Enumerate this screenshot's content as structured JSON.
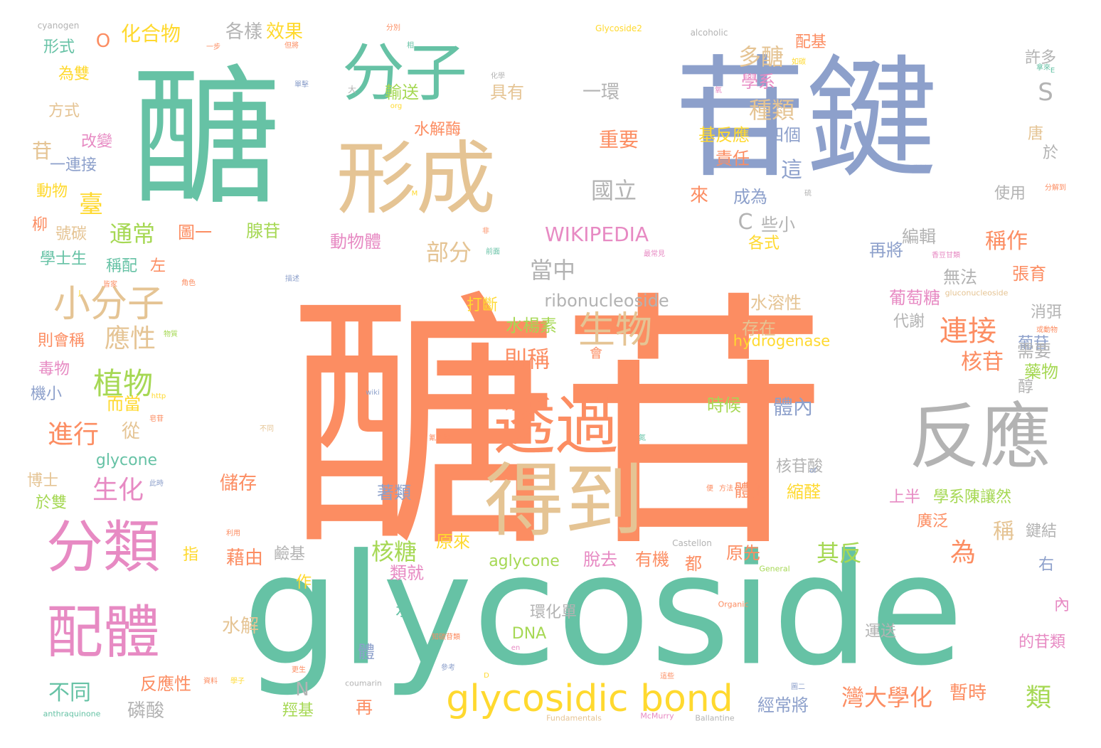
{
  "palette": {
    "green": "#66c2a5",
    "orange": "#fc8d62",
    "blue": "#8da0cb",
    "pink": "#e78ac3",
    "lime": "#a6d854",
    "yellow": "#ffd92f",
    "tan": "#e5c494",
    "gray": "#b3b3b3"
  },
  "words": [
    {
      "text": "醣苷",
      "color": "orange"
    },
    {
      "text": "glycoside",
      "color": "green"
    },
    {
      "text": "苷鍵",
      "color": "blue"
    },
    {
      "text": "醣",
      "color": "green"
    },
    {
      "text": "分子",
      "color": "green"
    },
    {
      "text": "形成",
      "color": "tan"
    },
    {
      "text": "透過",
      "color": "orange"
    },
    {
      "text": "得到",
      "color": "tan"
    },
    {
      "text": "反應",
      "color": "gray"
    },
    {
      "text": "分類",
      "color": "pink"
    },
    {
      "text": "配體",
      "color": "pink"
    },
    {
      "text": "glycosidic bond",
      "color": "yellow"
    },
    {
      "text": "小分子",
      "color": "tan"
    },
    {
      "text": "生物",
      "color": "tan"
    },
    {
      "text": "植物",
      "color": "lime"
    },
    {
      "text": "連接",
      "color": "orange"
    },
    {
      "text": "WIKIPEDIA",
      "color": "pink"
    },
    {
      "text": "ribonucleoside",
      "color": "gray"
    },
    {
      "text": "hydrogenase",
      "color": "yellow"
    },
    {
      "text": "glycone",
      "color": "green"
    },
    {
      "text": "aglycone",
      "color": "lime"
    },
    {
      "text": "化合物",
      "color": "yellow"
    },
    {
      "text": "cyanogen",
      "color": "gray"
    },
    {
      "text": "Glycoside2",
      "color": "yellow"
    },
    {
      "text": "alcoholic",
      "color": "gray"
    },
    {
      "text": "各樣",
      "color": "gray"
    },
    {
      "text": "效果",
      "color": "yellow"
    },
    {
      "text": "配基",
      "color": "orange"
    },
    {
      "text": "許多",
      "color": "gray"
    },
    {
      "text": "多醣",
      "color": "tan"
    },
    {
      "text": "種類",
      "color": "tan"
    },
    {
      "text": "S",
      "color": "gray"
    },
    {
      "text": "形式",
      "color": "green"
    },
    {
      "text": "為雙",
      "color": "yellow"
    },
    {
      "text": "方式",
      "color": "tan"
    },
    {
      "text": "改變",
      "color": "pink"
    },
    {
      "text": "一連接",
      "color": "blue"
    },
    {
      "text": "動物",
      "color": "yellow"
    },
    {
      "text": "柳",
      "color": "orange"
    },
    {
      "text": "號碳",
      "color": "tan"
    },
    {
      "text": "學士生",
      "color": "green"
    },
    {
      "text": "左",
      "color": "orange"
    },
    {
      "text": "則會稱",
      "color": "orange"
    },
    {
      "text": "毒物",
      "color": "pink"
    },
    {
      "text": "機小",
      "color": "blue"
    },
    {
      "text": "博士",
      "color": "tan"
    },
    {
      "text": "於雙",
      "color": "lime"
    },
    {
      "text": "指",
      "color": "yellow"
    },
    {
      "text": "不同",
      "color": "green"
    },
    {
      "text": "磷酸",
      "color": "gray"
    },
    {
      "text": "進行",
      "color": "orange"
    },
    {
      "text": "生化",
      "color": "pink"
    },
    {
      "text": "應性",
      "color": "tan"
    },
    {
      "text": "通常",
      "color": "lime"
    },
    {
      "text": "臺",
      "color": "yellow"
    },
    {
      "text": "部分",
      "color": "tan"
    },
    {
      "text": "當中",
      "color": "gray"
    },
    {
      "text": "國立",
      "color": "gray"
    },
    {
      "text": "重要",
      "color": "orange"
    },
    {
      "text": "水解酶",
      "color": "orange"
    },
    {
      "text": "一環",
      "color": "gray"
    },
    {
      "text": "輸送",
      "color": "lime"
    },
    {
      "text": "具有",
      "color": "tan"
    },
    {
      "text": "學系",
      "color": "pink"
    },
    {
      "text": "基反應",
      "color": "yellow"
    },
    {
      "text": "四個",
      "color": "blue"
    },
    {
      "text": "責任",
      "color": "orange"
    },
    {
      "text": "這",
      "color": "blue"
    },
    {
      "text": "成為",
      "color": "blue"
    },
    {
      "text": "來",
      "color": "orange"
    },
    {
      "text": "使用",
      "color": "gray"
    },
    {
      "text": "唐",
      "color": "tan"
    },
    {
      "text": "於",
      "color": "gray"
    },
    {
      "text": "稱作",
      "color": "orange"
    },
    {
      "text": "編輯",
      "color": "gray"
    },
    {
      "text": "再將",
      "color": "blue"
    },
    {
      "text": "無法",
      "color": "gray"
    },
    {
      "text": "張育",
      "color": "orange"
    },
    {
      "text": "葡萄糖",
      "color": "pink"
    },
    {
      "text": "消弭",
      "color": "gray"
    },
    {
      "text": "代謝",
      "color": "gray"
    },
    {
      "text": "葡苷",
      "color": "blue"
    },
    {
      "text": "核苷",
      "color": "orange"
    },
    {
      "text": "需要",
      "color": "gray"
    },
    {
      "text": "藥物",
      "color": "lime"
    },
    {
      "text": "醇",
      "color": "gray"
    },
    {
      "text": "水溶性",
      "color": "tan"
    },
    {
      "text": "存在",
      "color": "tan"
    },
    {
      "text": "水楊素",
      "color": "lime"
    },
    {
      "text": "打斷",
      "color": "yellow"
    },
    {
      "text": "則稱",
      "color": "orange"
    },
    {
      "text": "時候",
      "color": "lime"
    },
    {
      "text": "體內",
      "color": "blue"
    },
    {
      "text": "核苷酸",
      "color": "gray"
    },
    {
      "text": "體的",
      "color": "orange"
    },
    {
      "text": "縮醛",
      "color": "yellow"
    },
    {
      "text": "儲存",
      "color": "orange"
    },
    {
      "text": "著類",
      "color": "blue"
    },
    {
      "text": "學系陳讓然",
      "color": "lime"
    },
    {
      "text": "上半",
      "color": "pink"
    },
    {
      "text": "廣泛",
      "color": "orange"
    },
    {
      "text": "鍵結",
      "color": "gray"
    },
    {
      "text": "核糖",
      "color": "lime"
    },
    {
      "text": "其反",
      "color": "lime"
    },
    {
      "text": "為",
      "color": "orange"
    },
    {
      "text": "稱",
      "color": "tan"
    },
    {
      "text": "類",
      "color": "lime"
    },
    {
      "text": "原來",
      "color": "yellow"
    },
    {
      "text": "類就",
      "color": "pink"
    },
    {
      "text": "原先",
      "color": "orange"
    },
    {
      "text": "脫去",
      "color": "pink"
    },
    {
      "text": "有機",
      "color": "orange"
    },
    {
      "text": "都",
      "color": "orange"
    },
    {
      "text": "藉由",
      "color": "orange"
    },
    {
      "text": "鹼基",
      "color": "gray"
    },
    {
      "text": "作",
      "color": "yellow"
    },
    {
      "text": "水解",
      "color": "tan"
    },
    {
      "text": "水",
      "color": "green"
    },
    {
      "text": "環化單",
      "color": "gray"
    },
    {
      "text": "DNA",
      "color": "lime"
    },
    {
      "text": "運送",
      "color": "gray"
    },
    {
      "text": "體",
      "color": "blue"
    },
    {
      "text": "反應性",
      "color": "orange"
    },
    {
      "text": "再",
      "color": "orange"
    },
    {
      "text": "羥基",
      "color": "lime"
    },
    {
      "text": "灣大學化",
      "color": "orange"
    },
    {
      "text": "暫時",
      "color": "orange"
    },
    {
      "text": "經常將",
      "color": "blue"
    },
    {
      "text": "右",
      "color": "blue"
    },
    {
      "text": "內",
      "color": "pink"
    },
    {
      "text": "的苷類",
      "color": "pink"
    },
    {
      "text": "N",
      "color": "gray"
    },
    {
      "text": "C",
      "color": "gray"
    },
    {
      "text": "些小",
      "color": "gray"
    },
    {
      "text": "腺苷",
      "color": "lime"
    },
    {
      "text": "圖一",
      "color": "orange"
    },
    {
      "text": "動物體",
      "color": "pink"
    },
    {
      "text": "各式",
      "color": "yellow"
    },
    {
      "text": "稱配",
      "color": "green"
    },
    {
      "text": "而當",
      "color": "yellow"
    },
    {
      "text": "從",
      "color": "tan"
    },
    {
      "text": "會",
      "color": "orange"
    },
    {
      "text": "O",
      "color": "orange"
    },
    {
      "text": "苷",
      "color": "tan"
    },
    {
      "text": "Castellon",
      "color": "gray"
    },
    {
      "text": "General",
      "color": "lime"
    },
    {
      "text": "Organic",
      "color": "orange"
    },
    {
      "text": "coumarin",
      "color": "gray"
    },
    {
      "text": "anthraquinone",
      "color": "green"
    },
    {
      "text": "Fundamentals",
      "color": "tan"
    },
    {
      "text": "McMurry",
      "color": "pink"
    },
    {
      "text": "Ballantine",
      "color": "gray"
    },
    {
      "text": "gluconucleoside",
      "color": "tan"
    },
    {
      "text": "wiki",
      "color": "blue"
    },
    {
      "text": "http",
      "color": "yellow"
    },
    {
      "text": "org",
      "color": "yellow"
    },
    {
      "text": "of",
      "color": "blue"
    },
    {
      "text": "en",
      "color": "pink"
    },
    {
      "text": "M",
      "color": "yellow"
    },
    {
      "text": "D",
      "color": "yellow"
    },
    {
      "text": "E",
      "color": "green"
    },
    {
      "text": "J",
      "color": "yellow"
    },
    {
      "text": "大",
      "color": "gray"
    },
    {
      "text": "分別",
      "color": "orange"
    },
    {
      "text": "一步",
      "color": "orange"
    },
    {
      "text": "但將",
      "color": "orange"
    },
    {
      "text": "相",
      "color": "green"
    },
    {
      "text": "單擊",
      "color": "blue"
    },
    {
      "text": "化學",
      "color": "gray"
    },
    {
      "text": "氧",
      "color": "pink"
    },
    {
      "text": "如碳",
      "color": "yellow"
    },
    {
      "text": "拿來",
      "color": "green"
    },
    {
      "text": "硫",
      "color": "gray"
    },
    {
      "text": "分解到",
      "color": "orange"
    },
    {
      "text": "非",
      "color": "orange"
    },
    {
      "text": "前面",
      "color": "green"
    },
    {
      "text": "最常見",
      "color": "pink"
    },
    {
      "text": "香豆甘類",
      "color": "pink"
    },
    {
      "text": "角色",
      "color": "orange"
    },
    {
      "text": "描述",
      "color": "blue"
    },
    {
      "text": "皆家",
      "color": "orange"
    },
    {
      "text": "或動物",
      "color": "orange"
    },
    {
      "text": "物質",
      "color": "lime"
    },
    {
      "text": "不同",
      "color": "tan"
    },
    {
      "text": "氰苷類",
      "color": "orange"
    },
    {
      "text": "氮",
      "color": "green"
    },
    {
      "text": "皂苷",
      "color": "orange"
    },
    {
      "text": "此時",
      "color": "blue"
    },
    {
      "text": "利用",
      "color": "orange"
    },
    {
      "text": "便",
      "color": "orange"
    },
    {
      "text": "方法",
      "color": "orange"
    },
    {
      "text": "知碳苷類",
      "color": "orange"
    },
    {
      "text": "參考",
      "color": "blue"
    },
    {
      "text": "更生",
      "color": "orange"
    },
    {
      "text": "資料",
      "color": "orange"
    },
    {
      "text": "學子",
      "color": "yellow"
    },
    {
      "text": "這些",
      "color": "orange"
    },
    {
      "text": "圖二",
      "color": "blue"
    }
  ]
}
